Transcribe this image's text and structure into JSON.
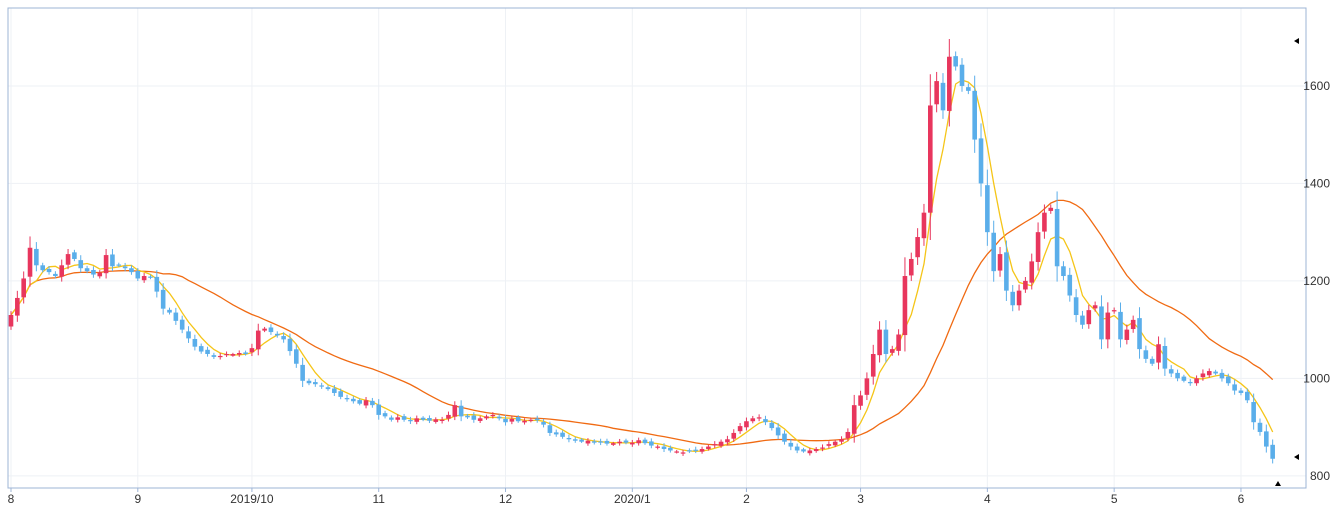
{
  "chart_data": {
    "type": "candlestick",
    "title": "",
    "xlabel": "",
    "ylabel": "",
    "ylim": [
      775,
      1760
    ],
    "y_ticks": [
      800,
      1000,
      1200,
      1400,
      1600
    ],
    "x_tick_labels": [
      {
        "label": "8",
        "index": 0
      },
      {
        "label": "9",
        "index": 20
      },
      {
        "label": "2019/10",
        "index": 38
      },
      {
        "label": "11",
        "index": 58
      },
      {
        "label": "12",
        "index": 78
      },
      {
        "label": "2020/1",
        "index": 98
      },
      {
        "label": "2",
        "index": 116
      },
      {
        "label": "3",
        "index": 134
      },
      {
        "label": "4",
        "index": 154
      },
      {
        "label": "5",
        "index": 174
      },
      {
        "label": "6",
        "index": 194
      }
    ],
    "grid": true,
    "colors": {
      "up": "#e8365d",
      "down": "#5aaeea",
      "ma_short": "#f5c518",
      "ma_long": "#f06a12",
      "grid": "#eef1f5",
      "frame": "#9db4d6"
    },
    "closes": [
      1130,
      1165,
      1205,
      1268,
      1232,
      1222,
      1218,
      1210,
      1232,
      1255,
      1245,
      1226,
      1220,
      1213,
      1217,
      1253,
      1230,
      1232,
      1226,
      1218,
      1205,
      1210,
      1207,
      1178,
      1143,
      1135,
      1118,
      1100,
      1082,
      1065,
      1055,
      1050,
      1044,
      1046,
      1050,
      1050,
      1052,
      1050,
      1062,
      1098,
      1102,
      1095,
      1088,
      1080,
      1056,
      1030,
      995,
      990,
      988,
      983,
      978,
      970,
      962,
      958,
      953,
      948,
      955,
      945,
      925,
      922,
      915,
      920,
      915,
      912,
      918,
      915,
      913,
      916,
      915,
      925,
      945,
      922,
      920,
      915,
      918,
      922,
      925,
      918,
      910,
      917,
      912,
      913,
      915,
      914,
      905,
      888,
      885,
      880,
      875,
      872,
      870,
      872,
      868,
      868,
      866,
      867,
      870,
      868,
      868,
      873,
      867,
      862,
      860,
      855,
      852,
      850,
      848,
      850,
      852,
      855,
      860,
      865,
      870,
      875,
      888,
      902,
      912,
      918,
      920,
      910,
      898,
      883,
      870,
      860,
      852,
      850,
      852,
      855,
      858,
      865,
      870,
      875,
      890,
      945,
      965,
      1000,
      1050,
      1100,
      1050,
      1060,
      1090,
      1210,
      1245,
      1290,
      1340,
      1560,
      1610,
      1550,
      1660,
      1640,
      1600,
      1590,
      1490,
      1400,
      1300,
      1220,
      1255,
      1180,
      1150,
      1180,
      1200,
      1240,
      1300,
      1340,
      1350,
      1230,
      1210,
      1170,
      1130,
      1110,
      1140,
      1150,
      1080,
      1135,
      1140,
      1080,
      1100,
      1120,
      1060,
      1040,
      1030,
      1070,
      1020,
      1010,
      1000,
      995,
      990,
      1000,
      1010,
      1015,
      1010,
      1000,
      990,
      975,
      970,
      955,
      910,
      890,
      860,
      835
    ]
  }
}
